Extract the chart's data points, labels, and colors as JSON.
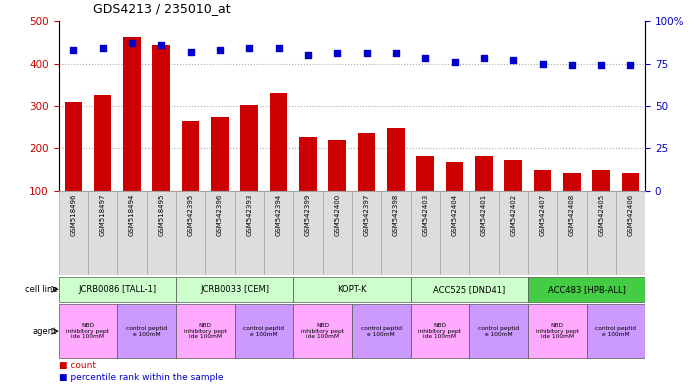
{
  "title": "GDS4213 / 235010_at",
  "samples": [
    "GSM518496",
    "GSM518497",
    "GSM518494",
    "GSM518495",
    "GSM542395",
    "GSM542396",
    "GSM542393",
    "GSM542394",
    "GSM542399",
    "GSM542400",
    "GSM542397",
    "GSM542398",
    "GSM542403",
    "GSM542404",
    "GSM542401",
    "GSM542402",
    "GSM542407",
    "GSM542408",
    "GSM542405",
    "GSM542406"
  ],
  "counts": [
    310,
    325,
    462,
    443,
    265,
    275,
    302,
    330,
    228,
    220,
    237,
    247,
    183,
    168,
    182,
    172,
    150,
    143,
    148,
    143
  ],
  "percentiles": [
    83,
    84,
    87,
    86,
    82,
    83,
    84,
    84,
    80,
    81,
    81,
    81,
    78,
    76,
    78,
    77,
    75,
    74,
    74,
    74
  ],
  "bar_color": "#CC0000",
  "dot_color": "#0000CC",
  "left_ylim": [
    100,
    500
  ],
  "right_ylim": [
    0,
    100
  ],
  "left_yticks": [
    100,
    200,
    300,
    400,
    500
  ],
  "right_yticks": [
    0,
    25,
    50,
    75,
    100
  ],
  "right_yticklabels": [
    "0",
    "25",
    "50",
    "75",
    "100%"
  ],
  "cell_lines": [
    {
      "label": "JCRB0086 [TALL-1]",
      "start": 0,
      "end": 4,
      "color": "#ccffcc"
    },
    {
      "label": "JCRB0033 [CEM]",
      "start": 4,
      "end": 8,
      "color": "#ccffcc"
    },
    {
      "label": "KOPT-K",
      "start": 8,
      "end": 12,
      "color": "#ccffcc"
    },
    {
      "label": "ACC525 [DND41]",
      "start": 12,
      "end": 16,
      "color": "#ccffcc"
    },
    {
      "label": "ACC483 [HPB-ALL]",
      "start": 16,
      "end": 20,
      "color": "#44cc44"
    }
  ],
  "agents": [
    {
      "label": "NBD\ninhibitory pept\nide 100mM",
      "start": 0,
      "end": 2,
      "color": "#ffaaff"
    },
    {
      "label": "control peptid\ne 100mM",
      "start": 2,
      "end": 4,
      "color": "#cc99ff"
    },
    {
      "label": "NBD\ninhibitory pept\nide 100mM",
      "start": 4,
      "end": 6,
      "color": "#ffaaff"
    },
    {
      "label": "control peptid\ne 100mM",
      "start": 6,
      "end": 8,
      "color": "#cc99ff"
    },
    {
      "label": "NBD\ninhibitory pept\nide 100mM",
      "start": 8,
      "end": 10,
      "color": "#ffaaff"
    },
    {
      "label": "control peptid\ne 100mM",
      "start": 10,
      "end": 12,
      "color": "#cc99ff"
    },
    {
      "label": "NBD\ninhibitory pept\nide 100mM",
      "start": 12,
      "end": 14,
      "color": "#ffaaff"
    },
    {
      "label": "control peptid\ne 100mM",
      "start": 14,
      "end": 16,
      "color": "#cc99ff"
    },
    {
      "label": "NBD\ninhibitory pept\nide 100mM",
      "start": 16,
      "end": 18,
      "color": "#ffaaff"
    },
    {
      "label": "control peptid\ne 100mM",
      "start": 18,
      "end": 20,
      "color": "#cc99ff"
    }
  ],
  "legend_count_color": "#CC0000",
  "legend_dot_color": "#0000CC",
  "bg_color": "#ffffff",
  "grid_color": "#aaaaaa",
  "grid_yticks": [
    200,
    300,
    400
  ]
}
